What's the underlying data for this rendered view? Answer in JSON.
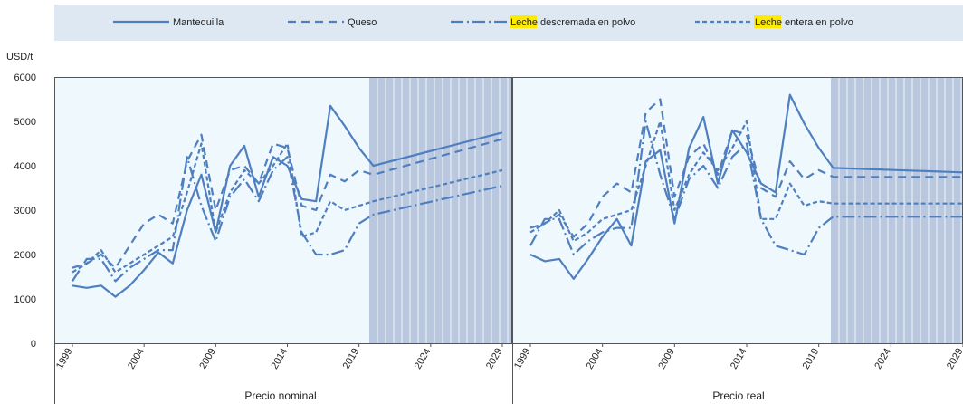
{
  "colors": {
    "line": "#4f7fbf",
    "panel_bg": "#eef8fd",
    "legend_bg": "#dde8f2",
    "projection_fill": "#b9c8de",
    "projection_grid": "#ffffff",
    "highlight": "#ffeb00",
    "frame": "#555555"
  },
  "chart_data": {
    "type": "line",
    "y_unit": "USD/t",
    "ylim": [
      0,
      6000
    ],
    "yticks": [
      0,
      1000,
      2000,
      3000,
      4000,
      5000,
      6000
    ],
    "x_range": [
      1999,
      2029
    ],
    "xticks": [
      1999,
      2004,
      2009,
      2014,
      2019,
      2024,
      2029
    ],
    "projection_start": 2020,
    "legend_position": "top",
    "series": [
      {
        "name": "Mantequilla",
        "style": "solid"
      },
      {
        "name": "Queso",
        "style": "dash"
      },
      {
        "name_highlight": "Leche",
        "name_rest": " descremada en polvo",
        "style": "dashdot"
      },
      {
        "name_highlight": "Leche",
        "name_rest": " entera en polvo",
        "style": "shortdash"
      }
    ],
    "panels": [
      {
        "xlabel": "Precio nominal",
        "series": [
          {
            "x": [
              1999,
              2000,
              2001,
              2002,
              2003,
              2004,
              2005,
              2006,
              2007,
              2008,
              2009,
              2010,
              2011,
              2012,
              2013,
              2014,
              2015,
              2016,
              2017,
              2018,
              2019,
              2020,
              2029
            ],
            "y": [
              1300,
              1250,
              1300,
              1050,
              1300,
              1650,
              2050,
              1800,
              3000,
              3800,
              2500,
              4000,
              4450,
              3300,
              4200,
              4000,
              3250,
              3200,
              5350,
              4900,
              4400,
              4000,
              4750
            ]
          },
          {
            "x": [
              1999,
              2000,
              2001,
              2002,
              2003,
              2004,
              2005,
              2006,
              2007,
              2008,
              2009,
              2010,
              2011,
              2012,
              2013,
              2014,
              2015,
              2016,
              2017,
              2018,
              2019,
              2020,
              2029
            ],
            "y": [
              1700,
              1800,
              2000,
              1700,
              2200,
              2700,
              2900,
              2700,
              4100,
              4700,
              3000,
              3900,
              4000,
              3600,
              4500,
              4400,
              3100,
              3000,
              3800,
              3650,
              3900,
              3800,
              4600
            ]
          },
          {
            "x": [
              1999,
              2000,
              2001,
              2002,
              2003,
              2004,
              2005,
              2006,
              2007,
              2008,
              2009,
              2010,
              2011,
              2012,
              2013,
              2014,
              2015,
              2016,
              2017,
              2018,
              2019,
              2020,
              2029
            ],
            "y": [
              1400,
              1900,
              1900,
              1400,
              1700,
              1900,
              2100,
              2100,
              4200,
              3100,
              2300,
              3300,
              3700,
              3200,
              3900,
              4200,
              2500,
              2000,
              2000,
              2100,
              2700,
              2900,
              3550
            ]
          },
          {
            "x": [
              1999,
              2000,
              2001,
              2002,
              2003,
              2004,
              2005,
              2006,
              2007,
              2008,
              2009,
              2010,
              2011,
              2012,
              2013,
              2014,
              2015,
              2016,
              2017,
              2018,
              2019,
              2020,
              2029
            ],
            "y": [
              1600,
              1800,
              2100,
              1600,
              1800,
              2000,
              2200,
              2400,
              3400,
              4500,
              2500,
              3400,
              3900,
              3600,
              4000,
              4500,
              2400,
              2500,
              3200,
              3000,
              3100,
              3200,
              3900
            ]
          }
        ]
      },
      {
        "xlabel": "Precio real",
        "series": [
          {
            "x": [
              1999,
              2000,
              2001,
              2002,
              2003,
              2004,
              2005,
              2006,
              2007,
              2008,
              2009,
              2010,
              2011,
              2012,
              2013,
              2014,
              2015,
              2016,
              2017,
              2018,
              2019,
              2020,
              2029
            ],
            "y": [
              2000,
              1850,
              1900,
              1450,
              1900,
              2400,
              2800,
              2200,
              4100,
              4350,
              2700,
              4400,
              5100,
              3600,
              4800,
              4300,
              3600,
              3400,
              5600,
              4950,
              4400,
              3950,
              3850
            ]
          },
          {
            "x": [
              1999,
              2000,
              2001,
              2002,
              2003,
              2004,
              2005,
              2006,
              2007,
              2008,
              2009,
              2010,
              2011,
              2012,
              2013,
              2014,
              2015,
              2016,
              2017,
              2018,
              2019,
              2020,
              2029
            ],
            "y": [
              2600,
              2700,
              2900,
              2400,
              2700,
              3300,
              3600,
              3400,
              5200,
              5500,
              3300,
              4200,
              4500,
              3800,
              4800,
              4700,
              3500,
              3300,
              4100,
              3700,
              3900,
              3750,
              3750
            ]
          },
          {
            "x": [
              1999,
              2000,
              2001,
              2002,
              2003,
              2004,
              2005,
              2006,
              2007,
              2008,
              2009,
              2010,
              2011,
              2012,
              2013,
              2014,
              2015,
              2016,
              2017,
              2018,
              2019,
              2020,
              2029
            ],
            "y": [
              2200,
              2800,
              2800,
              2000,
              2300,
              2500,
              2600,
              2600,
              5000,
              3800,
              2800,
              3700,
              4000,
              3500,
              4200,
              4500,
              2800,
              2200,
              2100,
              2000,
              2600,
              2850,
              2850
            ]
          },
          {
            "x": [
              1999,
              2000,
              2001,
              2002,
              2003,
              2004,
              2005,
              2006,
              2007,
              2008,
              2009,
              2010,
              2011,
              2012,
              2013,
              2014,
              2015,
              2016,
              2017,
              2018,
              2019,
              2020,
              2029
            ],
            "y": [
              2500,
              2700,
              3000,
              2300,
              2500,
              2800,
              2900,
              3000,
              4000,
              5000,
              3000,
              3800,
              4300,
              3900,
              4400,
              5000,
              2800,
              2800,
              3600,
              3100,
              3200,
              3150,
              3150
            ]
          }
        ]
      }
    ]
  }
}
